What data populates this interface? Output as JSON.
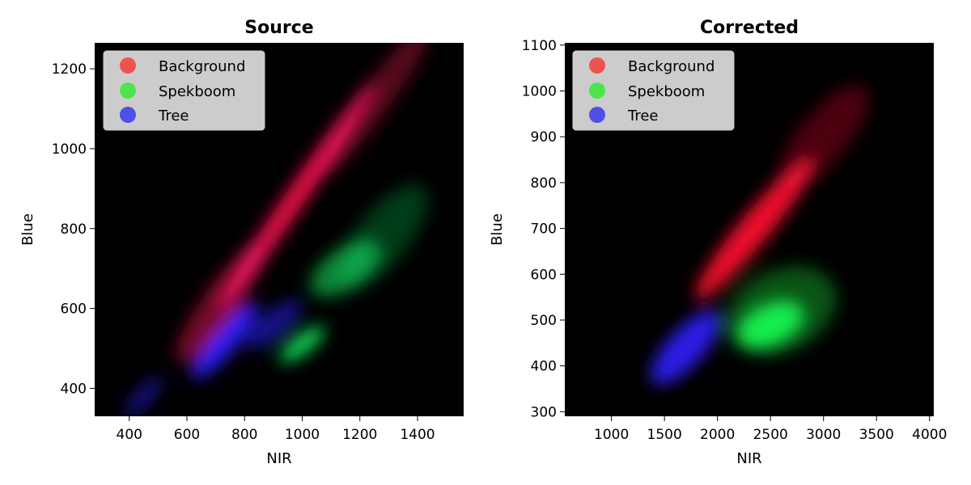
{
  "chart_data": [
    {
      "type": "heatmap",
      "title": "Source",
      "xlabel": "NIR",
      "ylabel": "Blue",
      "xlim": [
        280,
        1560
      ],
      "ylim": [
        330,
        1265
      ],
      "xticks": [
        400,
        600,
        800,
        1000,
        1200,
        1400
      ],
      "yticks": [
        400,
        600,
        800,
        1000,
        1200
      ],
      "legend": {
        "position": "upper-left",
        "entries": [
          {
            "label": "Background",
            "color": "#ef5350"
          },
          {
            "label": "Spekboom",
            "color": "#4ce54c"
          },
          {
            "label": "Tree",
            "color": "#5050e6"
          }
        ]
      },
      "series": [
        {
          "name": "Background",
          "color": "#ff1050",
          "blobs": [
            {
              "x": 980,
              "y": 880,
              "along_x": 1,
              "along_y": 1.05,
              "len": 480,
              "wid": 35,
              "alpha": 0.95
            },
            {
              "x": 1250,
              "y": 1120,
              "along_x": 1,
              "along_y": 1.0,
              "len": 320,
              "wid": 55,
              "alpha": 0.35
            },
            {
              "x": 720,
              "y": 620,
              "along_x": 1,
              "along_y": 1.0,
              "len": 260,
              "wid": 60,
              "alpha": 0.45
            }
          ]
        },
        {
          "name": "Spekboom",
          "color": "#10f060",
          "blobs": [
            {
              "x": 1000,
              "y": 510,
              "along_x": 1,
              "along_y": 0.55,
              "len": 95,
              "wid": 30,
              "alpha": 0.95
            },
            {
              "x": 1150,
              "y": 700,
              "along_x": 1,
              "along_y": 0.5,
              "len": 140,
              "wid": 70,
              "alpha": 0.55
            },
            {
              "x": 1280,
              "y": 780,
              "along_x": 1,
              "along_y": 0.9,
              "len": 220,
              "wid": 90,
              "alpha": 0.25
            }
          ]
        },
        {
          "name": "Tree",
          "color": "#2a20ff",
          "blobs": [
            {
              "x": 730,
              "y": 520,
              "along_x": 1,
              "along_y": 0.85,
              "len": 170,
              "wid": 45,
              "alpha": 0.95
            },
            {
              "x": 900,
              "y": 560,
              "along_x": 1,
              "along_y": 0.6,
              "len": 120,
              "wid": 45,
              "alpha": 0.55
            },
            {
              "x": 450,
              "y": 380,
              "along_x": 1,
              "along_y": 0.8,
              "len": 90,
              "wid": 30,
              "alpha": 0.5
            }
          ]
        }
      ]
    },
    {
      "type": "heatmap",
      "title": "Corrected",
      "xlabel": "NIR",
      "ylabel": "Blue",
      "xlim": [
        560,
        4040
      ],
      "ylim": [
        290,
        1105
      ],
      "xticks": [
        1000,
        1500,
        2000,
        2500,
        3000,
        3500,
        4000
      ],
      "yticks": [
        300,
        400,
        500,
        600,
        700,
        800,
        900,
        1000,
        1100
      ],
      "legend": {
        "position": "upper-left",
        "entries": [
          {
            "label": "Background",
            "color": "#ef5350"
          },
          {
            "label": "Spekboom",
            "color": "#4ce54c"
          },
          {
            "label": "Tree",
            "color": "#5050e6"
          }
        ]
      },
      "series": [
        {
          "name": "Background",
          "color": "#ff1030",
          "blobs": [
            {
              "x": 2350,
              "y": 700,
              "along_x": 1000,
              "along_y": 280,
              "len": 1,
              "wid": 1,
              "wscale": 0.075,
              "alpha": 0.95
            },
            {
              "x": 3000,
              "y": 900,
              "along_x": 1000,
              "along_y": 280,
              "len": 0.7,
              "wid": 1,
              "wscale": 0.12,
              "alpha": 0.3
            }
          ]
        },
        {
          "name": "Spekboom",
          "color": "#10f040",
          "blobs": [
            {
              "x": 2500,
              "y": 490,
              "along_x": 1000,
              "along_y": 110,
              "len": 0.55,
              "wid": 1,
              "wscale": 0.1,
              "alpha": 0.95
            },
            {
              "x": 2600,
              "y": 520,
              "along_x": 1000,
              "along_y": 110,
              "len": 0.9,
              "wid": 1,
              "wscale": 0.2,
              "alpha": 0.35
            }
          ]
        },
        {
          "name": "Tree",
          "color": "#3020ff",
          "blobs": [
            {
              "x": 1700,
              "y": 440,
              "along_x": 1000,
              "along_y": 250,
              "len": 0.55,
              "wid": 1,
              "wscale": 0.09,
              "alpha": 0.9
            }
          ]
        }
      ]
    }
  ]
}
